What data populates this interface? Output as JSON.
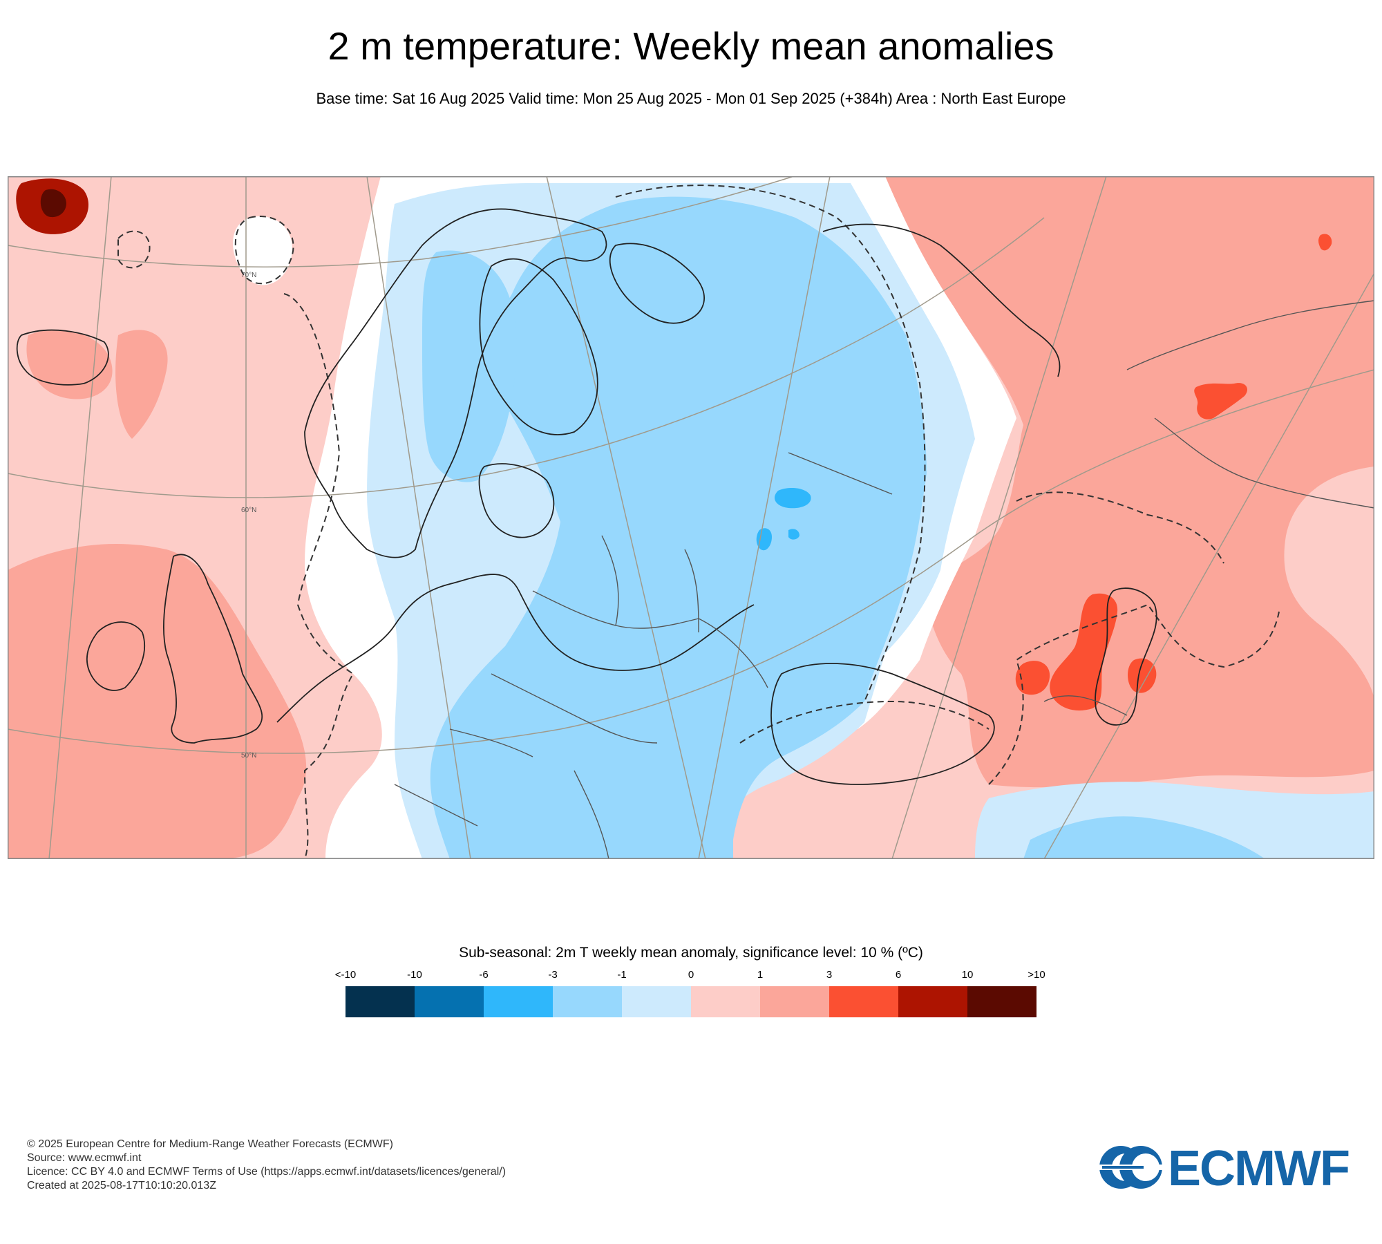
{
  "title": "2 m temperature: Weekly mean anomalies",
  "subtitle": "Base time: Sat 16 Aug 2025 Valid time: Mon 25 Aug 2025 - Mon 01 Sep 2025 (+384h) Area : North East Europe",
  "map": {
    "latitude_labels": [
      "70°N",
      "60°N",
      "50°N"
    ],
    "colors": {
      "frame": "#888888",
      "graticule": "#a09a8c",
      "coastline": "#222222",
      "border": "#555555"
    }
  },
  "legend": {
    "title": "Sub-seasonal: 2m T weekly mean anomaly, significance level: 10 % (ºC)",
    "tick_labels": [
      "<-10",
      "-10",
      "-6",
      "-3",
      "-1",
      "0",
      "1",
      "3",
      "6",
      "10",
      ">10"
    ],
    "colors": [
      "#04314f",
      "#0571b0",
      "#2fb7fb",
      "#97d8fd",
      "#cdeafd",
      "#fdcdc8",
      "#fba69a",
      "#fb5032",
      "#ad1401",
      "#5b0a01"
    ]
  },
  "footer": {
    "copyright": "© 2025 European Centre for Medium-Range Weather Forecasts (ECMWF)",
    "source": "Source: www.ecmwf.int",
    "licence": "Licence: CC BY 4.0 and ECMWF Terms of Use (https://apps.ecmwf.int/datasets/licences/general/)",
    "created": "Created at 2025-08-17T10:10:20.013Z"
  },
  "logo": {
    "text": "ECMWF",
    "color": "#1565a8"
  }
}
